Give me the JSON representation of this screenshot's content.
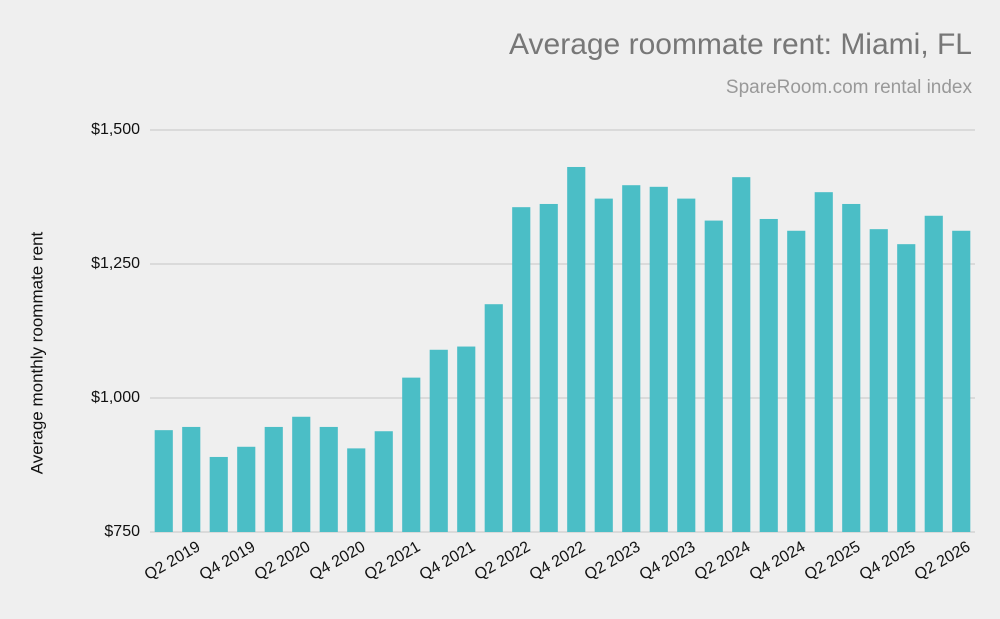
{
  "chart_data": {
    "type": "bar",
    "title": "Average roommate rent: Miami, FL",
    "subtitle": "SpareRoom.com rental index",
    "y_label": "Average monthly roommate rent",
    "categories": [
      null,
      "Q2 2019",
      null,
      "Q4 2019",
      null,
      "Q2 2020",
      null,
      "Q4 2020",
      null,
      "Q2 2021",
      null,
      "Q4 2021",
      null,
      "Q2 2022",
      null,
      "Q4 2022",
      null,
      "Q2 2023",
      null,
      "Q4 2023",
      null,
      "Q2 2024",
      null,
      "Q4 2024",
      null,
      "Q2 2025",
      null,
      "Q4 2025",
      null,
      "Q2 2026"
    ],
    "values": [
      940,
      946,
      890,
      909,
      946,
      965,
      946,
      906,
      938,
      1038,
      1090,
      1096,
      1175,
      1356,
      1362,
      1431,
      1372,
      1397,
      1394,
      1372,
      1331,
      1412,
      1334,
      1312,
      1384,
      1362,
      1315,
      1287,
      1340,
      1312
    ],
    "color": "#4bbec6",
    "ylim": [
      750,
      1500
    ],
    "yticks": [
      {
        "value": 750,
        "label": "$750"
      },
      {
        "value": 1000,
        "label": "$1,000"
      },
      {
        "value": 1250,
        "label": "$1,250"
      },
      {
        "value": 1500,
        "label": "$1,500"
      }
    ],
    "grid": true
  }
}
